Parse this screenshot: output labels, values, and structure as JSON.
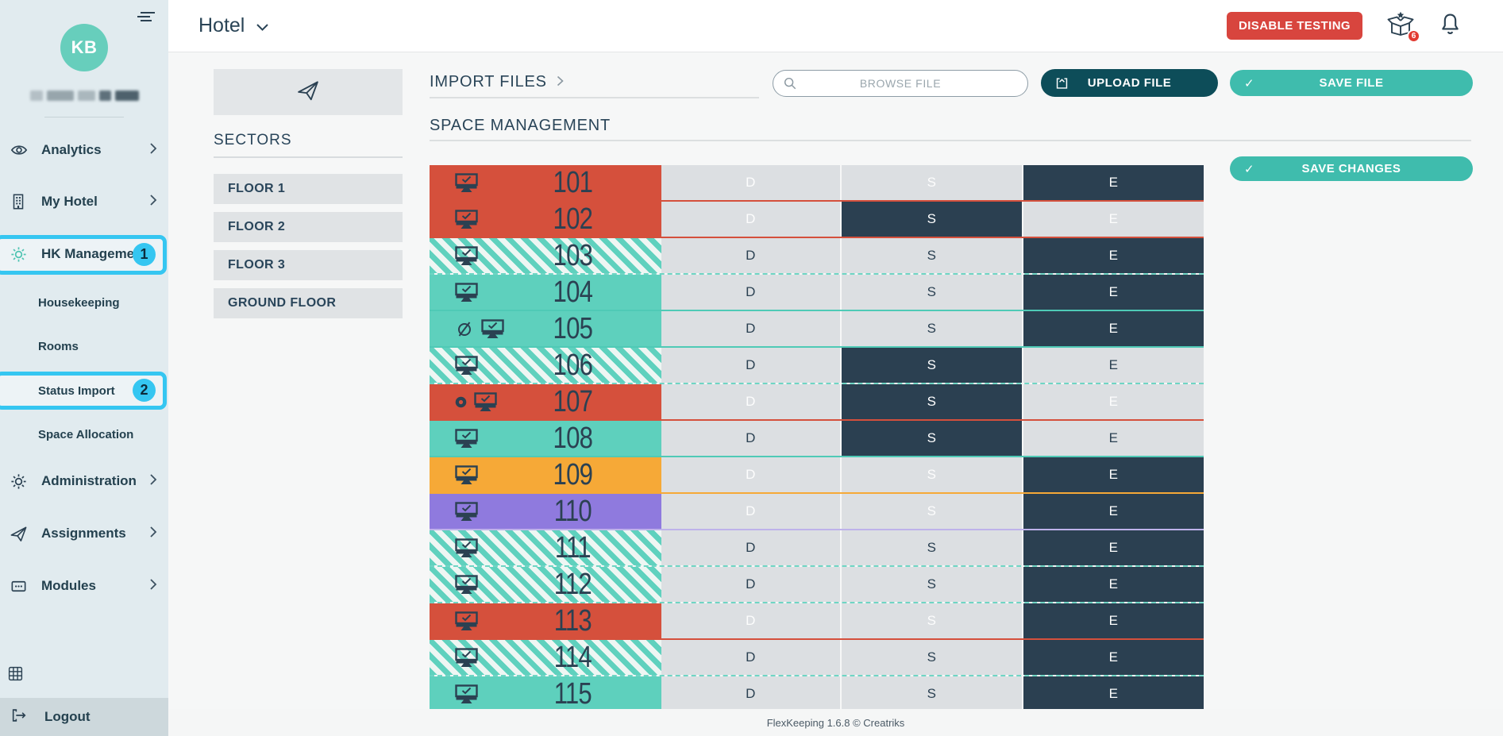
{
  "sidebar": {
    "avatar_initials": "KB",
    "items": [
      {
        "label": "Analytics",
        "icon": "eye"
      },
      {
        "label": "My Hotel",
        "icon": "building"
      },
      {
        "label": "HK Management",
        "icon": "gear",
        "badge": "1"
      },
      {
        "label": "Housekeeping",
        "sub": true
      },
      {
        "label": "Rooms",
        "sub": true
      },
      {
        "label": "Status Import",
        "sub": true,
        "badge": "2"
      },
      {
        "label": "Space Allocation",
        "sub": true
      },
      {
        "label": "Administration",
        "icon": "gear"
      },
      {
        "label": "Assignments",
        "icon": "plane"
      },
      {
        "label": "Modules",
        "icon": "modules"
      }
    ],
    "logout_label": "Logout"
  },
  "topbar": {
    "title": "Hotel",
    "disable_testing_label": "DISABLE TESTING",
    "gift_badge": "6"
  },
  "sectors": {
    "heading": "SECTORS",
    "items": [
      "FLOOR 1",
      "FLOOR 2",
      "FLOOR 3",
      "GROUND FLOOR"
    ]
  },
  "import": {
    "heading": "IMPORT FILES",
    "browse_placeholder": "BROWSE FILE",
    "upload_label": "UPLOAD FILE",
    "save_label": "SAVE FILE",
    "check_glyph": "✓"
  },
  "space_management": {
    "heading": "SPACE MANAGEMENT",
    "save_changes_label": "SAVE CHANGES",
    "columns": [
      "D",
      "S",
      "E"
    ],
    "rooms": [
      {
        "number": "101",
        "status": "red",
        "selected": "E",
        "icons": [
          "monitor"
        ]
      },
      {
        "number": "102",
        "status": "red",
        "selected": "S",
        "icons": [
          "monitor"
        ]
      },
      {
        "number": "103",
        "status": "striped",
        "selected": "E",
        "icons": [
          "monitor"
        ]
      },
      {
        "number": "104",
        "status": "teal",
        "selected": "E",
        "icons": [
          "monitor"
        ]
      },
      {
        "number": "105",
        "status": "teal",
        "selected": "E",
        "icons": [
          "dnd",
          "monitor"
        ]
      },
      {
        "number": "106",
        "status": "striped",
        "selected": "S",
        "icons": [
          "monitor"
        ]
      },
      {
        "number": "107",
        "status": "red",
        "selected": "S",
        "icons": [
          "dot",
          "monitor"
        ]
      },
      {
        "number": "108",
        "status": "teal",
        "selected": "S",
        "icons": [
          "monitor"
        ]
      },
      {
        "number": "109",
        "status": "orange",
        "selected": "E",
        "icons": [
          "monitor"
        ]
      },
      {
        "number": "110",
        "status": "purple",
        "selected": "E",
        "icons": [
          "monitor"
        ]
      },
      {
        "number": "111",
        "status": "striped",
        "selected": "E",
        "icons": [
          "monitor"
        ]
      },
      {
        "number": "112",
        "status": "striped",
        "selected": "E",
        "icons": [
          "monitor"
        ]
      },
      {
        "number": "113",
        "status": "red",
        "selected": "E",
        "icons": [
          "monitor"
        ]
      },
      {
        "number": "114",
        "status": "striped",
        "selected": "E",
        "icons": [
          "monitor"
        ]
      },
      {
        "number": "115",
        "status": "teal",
        "selected": "E",
        "icons": [
          "monitor"
        ]
      }
    ]
  },
  "footer": {
    "text": "FlexKeeping 1.6.8 © Creatriks"
  },
  "colors": {
    "status_red": "#d5503c",
    "status_teal": "#5ed0bd",
    "status_orange": "#f6a937",
    "status_purple": "#8f7ade",
    "selected_cell": "#2b4051",
    "unselected_cell": "#dcdfe2",
    "accent_teal_button": "#3fbcad",
    "dark_teal_button": "#0d4d59",
    "danger_red_button": "#d8453e",
    "annotation_cyan": "#35c6f1",
    "sidebar_bg": "#e1ebef",
    "avatar_teal": "#67cebc"
  }
}
